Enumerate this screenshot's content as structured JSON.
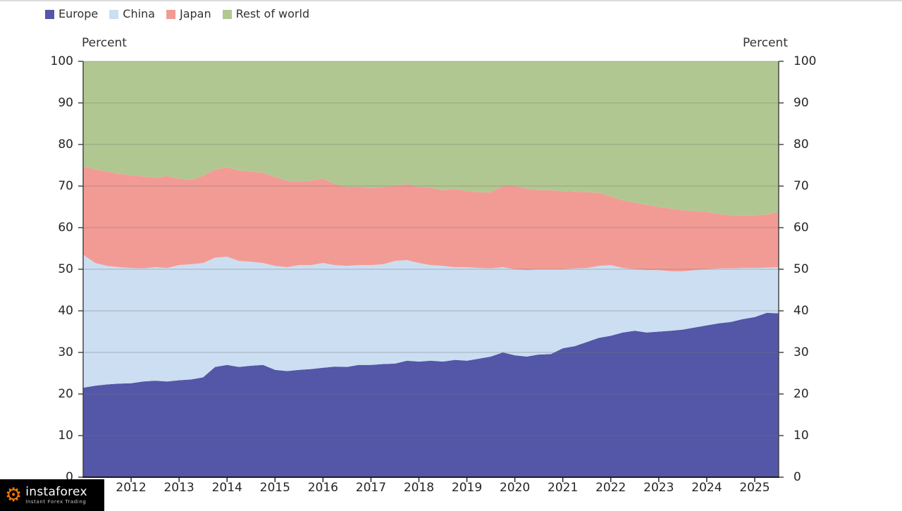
{
  "watermark": {
    "brand": "instaforex",
    "tagline": "Instant Forex Trading",
    "gear_color": "#ff7800",
    "background": "#000000"
  },
  "chart_data": {
    "type": "area",
    "stacked": true,
    "title": "",
    "ylabel_left": "Percent",
    "ylabel_right": "Percent",
    "ylim": [
      0,
      100
    ],
    "grid": true,
    "legend_position": "top-left",
    "gridline_color": "#787878",
    "axis_color": "#3c3c3c",
    "y_ticks": [
      0,
      10,
      20,
      30,
      40,
      50,
      60,
      70,
      80,
      90,
      100
    ],
    "x_tick_labels": [
      "2012",
      "2013",
      "2014",
      "2015",
      "2016",
      "2017",
      "2018",
      "2019",
      "2020",
      "2021",
      "2022",
      "2023",
      "2024",
      "2025"
    ],
    "x": [
      2011,
      2011.25,
      2011.5,
      2011.75,
      2012,
      2012.25,
      2012.5,
      2012.75,
      2013,
      2013.25,
      2013.5,
      2013.75,
      2014,
      2014.25,
      2014.5,
      2014.75,
      2015,
      2015.25,
      2015.5,
      2015.75,
      2016,
      2016.25,
      2016.5,
      2016.75,
      2017,
      2017.25,
      2017.5,
      2017.75,
      2018,
      2018.25,
      2018.5,
      2018.75,
      2019,
      2019.25,
      2019.5,
      2019.75,
      2020,
      2020.25,
      2020.5,
      2020.75,
      2021,
      2021.25,
      2021.5,
      2021.75,
      2022,
      2022.25,
      2022.5,
      2022.75,
      2023,
      2023.25,
      2023.5,
      2023.75,
      2024,
      2024.25,
      2024.5,
      2024.75,
      2025,
      2025.25,
      2025.5
    ],
    "series": [
      {
        "name": "Europe",
        "color": "#5456a8",
        "values": [
          21.5,
          22.0,
          22.3,
          22.5,
          22.6,
          23.0,
          23.2,
          23.0,
          23.3,
          23.5,
          24.0,
          26.5,
          27.0,
          26.5,
          26.8,
          27.0,
          25.8,
          25.5,
          25.8,
          26.0,
          26.3,
          26.6,
          26.5,
          27.0,
          27.0,
          27.2,
          27.3,
          28.0,
          27.8,
          28.0,
          27.8,
          28.2,
          28.0,
          28.5,
          29.0,
          30.0,
          29.3,
          29.0,
          29.5,
          29.6,
          31.0,
          31.5,
          32.5,
          33.5,
          34.0,
          34.8,
          35.2,
          34.8,
          35.0,
          35.2,
          35.5,
          36.0,
          36.5,
          37.0,
          37.3,
          38.0,
          38.5,
          39.5,
          39.4
        ]
      },
      {
        "name": "China",
        "color": "#cbdef2",
        "values": [
          32.0,
          29.5,
          28.5,
          28.0,
          27.7,
          27.2,
          27.3,
          27.3,
          27.7,
          27.7,
          27.5,
          26.3,
          26.0,
          25.5,
          25.0,
          24.5,
          25.0,
          25.0,
          25.2,
          25.0,
          25.2,
          24.4,
          24.3,
          24.0,
          24.0,
          24.0,
          24.7,
          24.2,
          23.7,
          23.0,
          23.0,
          22.3,
          22.5,
          21.8,
          21.2,
          20.5,
          20.7,
          20.8,
          20.5,
          20.4,
          19.0,
          18.7,
          17.8,
          17.3,
          17.0,
          15.5,
          14.8,
          15.0,
          14.8,
          14.3,
          14.0,
          13.8,
          13.5,
          13.2,
          12.9,
          12.3,
          11.8,
          10.9,
          11.1
        ]
      },
      {
        "name": "Japan",
        "color": "#f29b94",
        "values": [
          21.3,
          22.5,
          22.7,
          22.5,
          22.3,
          22.1,
          21.5,
          22.1,
          20.8,
          20.3,
          21.0,
          21.2,
          21.5,
          21.8,
          21.7,
          21.7,
          21.4,
          20.8,
          20.0,
          20.3,
          20.3,
          19.5,
          19.0,
          18.9,
          18.5,
          18.6,
          18.0,
          18.3,
          18.3,
          18.6,
          18.2,
          18.8,
          18.3,
          18.2,
          18.3,
          19.5,
          20.0,
          19.6,
          19.0,
          19.0,
          18.8,
          18.5,
          18.2,
          17.6,
          16.5,
          16.3,
          16.0,
          15.7,
          15.2,
          15.1,
          14.7,
          14.2,
          13.8,
          13.1,
          12.8,
          12.7,
          12.7,
          12.8,
          13.3
        ]
      },
      {
        "name": "Rest of world",
        "color": "#b1c791",
        "values": [
          25.2,
          26.0,
          26.5,
          27.0,
          27.4,
          27.7,
          28.0,
          27.6,
          28.2,
          28.5,
          27.5,
          26.0,
          25.5,
          26.2,
          26.5,
          26.8,
          27.8,
          28.7,
          29.0,
          28.7,
          28.2,
          29.5,
          30.2,
          30.1,
          30.5,
          30.2,
          30.0,
          29.5,
          30.2,
          30.4,
          31.0,
          30.7,
          31.2,
          31.5,
          31.5,
          30.0,
          30.0,
          30.6,
          31.0,
          31.0,
          31.2,
          31.3,
          31.5,
          31.6,
          32.5,
          33.4,
          34.0,
          34.5,
          35.0,
          35.4,
          35.8,
          36.0,
          36.2,
          36.7,
          37.0,
          37.0,
          37.0,
          36.8,
          36.2
        ]
      }
    ]
  }
}
